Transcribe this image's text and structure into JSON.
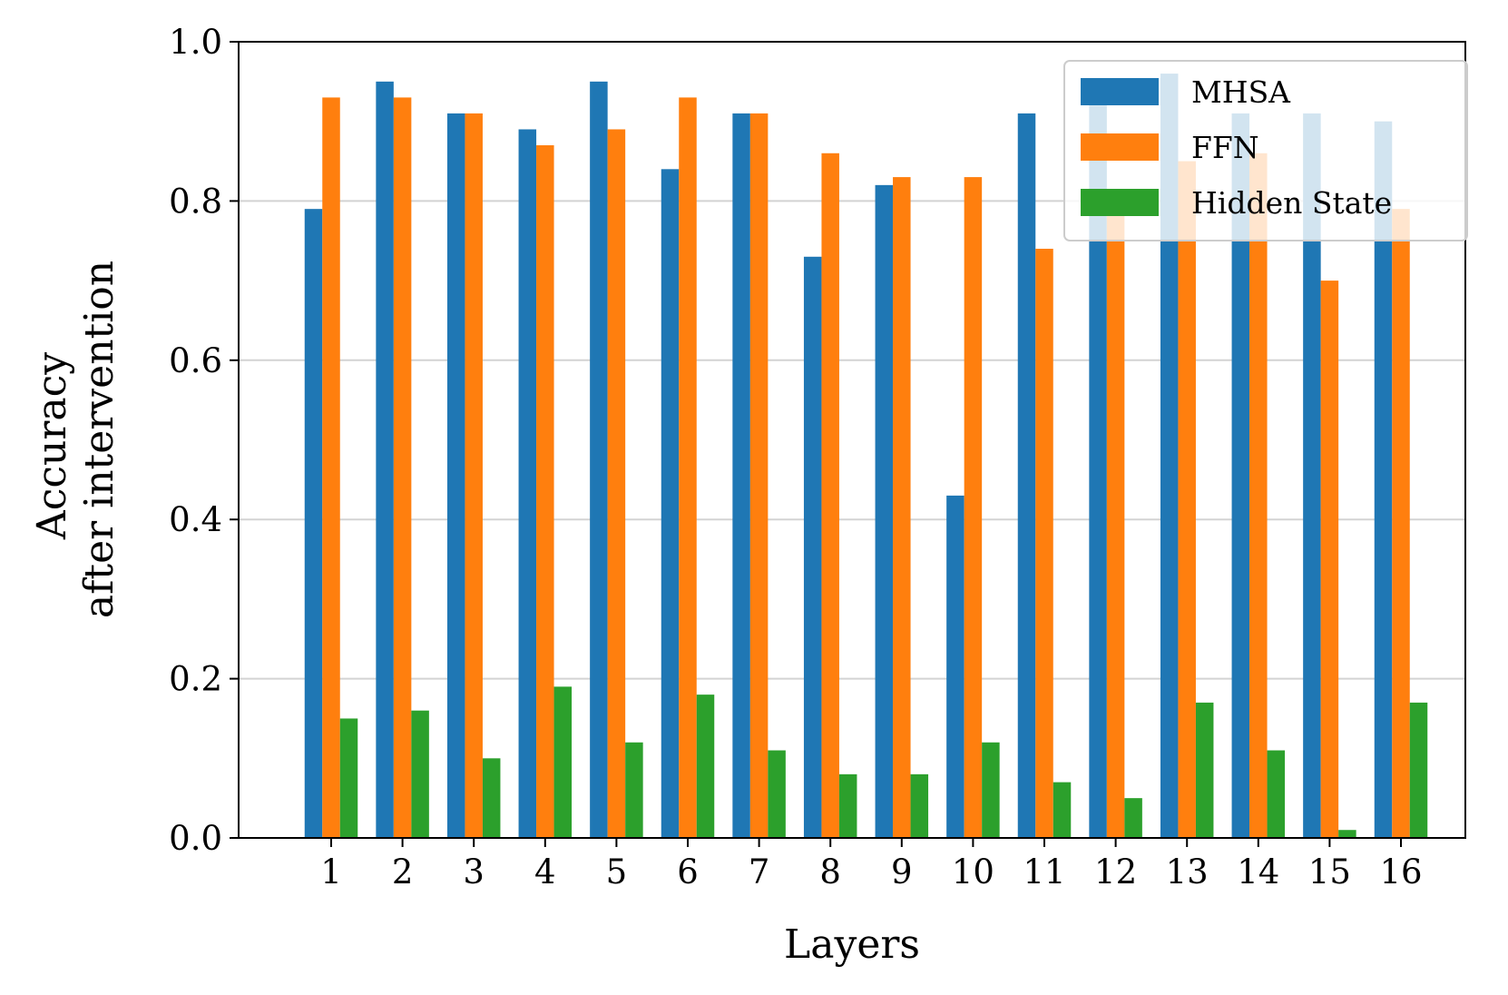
{
  "chart_data": {
    "type": "bar",
    "title": "",
    "xlabel": "Layers",
    "ylabel_lines": [
      "Accuracy",
      "after intervention"
    ],
    "categories": [
      "1",
      "2",
      "3",
      "4",
      "5",
      "6",
      "7",
      "8",
      "9",
      "10",
      "11",
      "12",
      "13",
      "14",
      "15",
      "16"
    ],
    "ylim": [
      0,
      1.0
    ],
    "yticks": [
      "0.0",
      "0.2",
      "0.4",
      "0.6",
      "0.8",
      "1.0"
    ],
    "grid": "horizontal",
    "legend_position": "top-right",
    "series": [
      {
        "name": "MHSA",
        "color": "#1f77b4",
        "values": [
          0.79,
          0.95,
          0.91,
          0.89,
          0.95,
          0.84,
          0.91,
          0.73,
          0.82,
          0.43,
          0.91,
          0.92,
          0.96,
          0.91,
          0.91,
          0.9
        ]
      },
      {
        "name": "FFN",
        "color": "#ff7f0e",
        "values": [
          0.93,
          0.93,
          0.91,
          0.87,
          0.89,
          0.93,
          0.91,
          0.86,
          0.83,
          0.83,
          0.74,
          0.79,
          0.85,
          0.86,
          0.7,
          0.79
        ]
      },
      {
        "name": "Hidden State",
        "color": "#2ca02c",
        "values": [
          0.15,
          0.16,
          0.1,
          0.19,
          0.12,
          0.18,
          0.11,
          0.08,
          0.08,
          0.12,
          0.07,
          0.05,
          0.17,
          0.11,
          0.01,
          0.17
        ]
      }
    ]
  }
}
